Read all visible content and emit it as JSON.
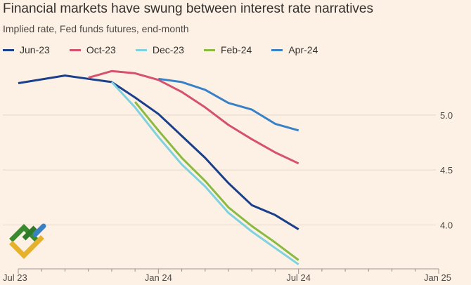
{
  "header": {
    "title": "Financial markets have swung between interest rate narratives",
    "subtitle": "Implied rate, Fed funds futures, end-month"
  },
  "colors": {
    "background": "#fdf1e5",
    "grid": "#e5d8cb",
    "tick_text": "#4d4845"
  },
  "chart_data": {
    "type": "line",
    "title": "Financial markets have swung between interest rate narratives",
    "subtitle": "Implied rate, Fed funds futures, end-month",
    "xlabel": "",
    "ylabel": "",
    "x_ticks": [
      "Jul 23",
      "Jan 24",
      "Jul 24",
      "Jan 25"
    ],
    "x_range": [
      0,
      18
    ],
    "y_ticks": [
      "4.0",
      "4.5",
      "5.0"
    ],
    "y_range": [
      3.6,
      5.6
    ],
    "grid": true,
    "legend_position": "top-left",
    "series": [
      {
        "name": "Jun-23",
        "color": "#1b3f8a",
        "points": [
          [
            0,
            5.29
          ],
          [
            2,
            5.36
          ],
          [
            3,
            5.33
          ],
          [
            4,
            5.3
          ],
          [
            5,
            5.16
          ],
          [
            6,
            5.01
          ],
          [
            7,
            4.81
          ],
          [
            8,
            4.61
          ],
          [
            9,
            4.38
          ],
          [
            10,
            4.18
          ],
          [
            11,
            4.09
          ],
          [
            12,
            3.96
          ]
        ]
      },
      {
        "name": "Oct-23",
        "color": "#d4526e",
        "points": [
          [
            3,
            5.34
          ],
          [
            4,
            5.4
          ],
          [
            5,
            5.38
          ],
          [
            6,
            5.32
          ],
          [
            7,
            5.21
          ],
          [
            8,
            5.07
          ],
          [
            9,
            4.91
          ],
          [
            10,
            4.78
          ],
          [
            11,
            4.66
          ],
          [
            12,
            4.56
          ]
        ]
      },
      {
        "name": "Dec-23",
        "color": "#7fd1e0",
        "points": [
          [
            4,
            5.3
          ],
          [
            5,
            5.07
          ],
          [
            6,
            4.8
          ],
          [
            7,
            4.55
          ],
          [
            8,
            4.35
          ],
          [
            9,
            4.11
          ],
          [
            10,
            3.94
          ],
          [
            11,
            3.79
          ],
          [
            12,
            3.64
          ]
        ]
      },
      {
        "name": "Feb-24",
        "color": "#8aba3f",
        "points": [
          [
            5,
            5.12
          ],
          [
            6,
            4.86
          ],
          [
            7,
            4.61
          ],
          [
            8,
            4.4
          ],
          [
            9,
            4.16
          ],
          [
            10,
            3.99
          ],
          [
            11,
            3.84
          ],
          [
            12,
            3.68
          ]
        ]
      },
      {
        "name": "Apr-24",
        "color": "#3881c7",
        "points": [
          [
            6,
            5.33
          ],
          [
            7,
            5.3
          ],
          [
            8,
            5.23
          ],
          [
            9,
            5.11
          ],
          [
            10,
            5.05
          ],
          [
            11,
            4.92
          ],
          [
            12,
            4.86
          ]
        ]
      }
    ]
  }
}
